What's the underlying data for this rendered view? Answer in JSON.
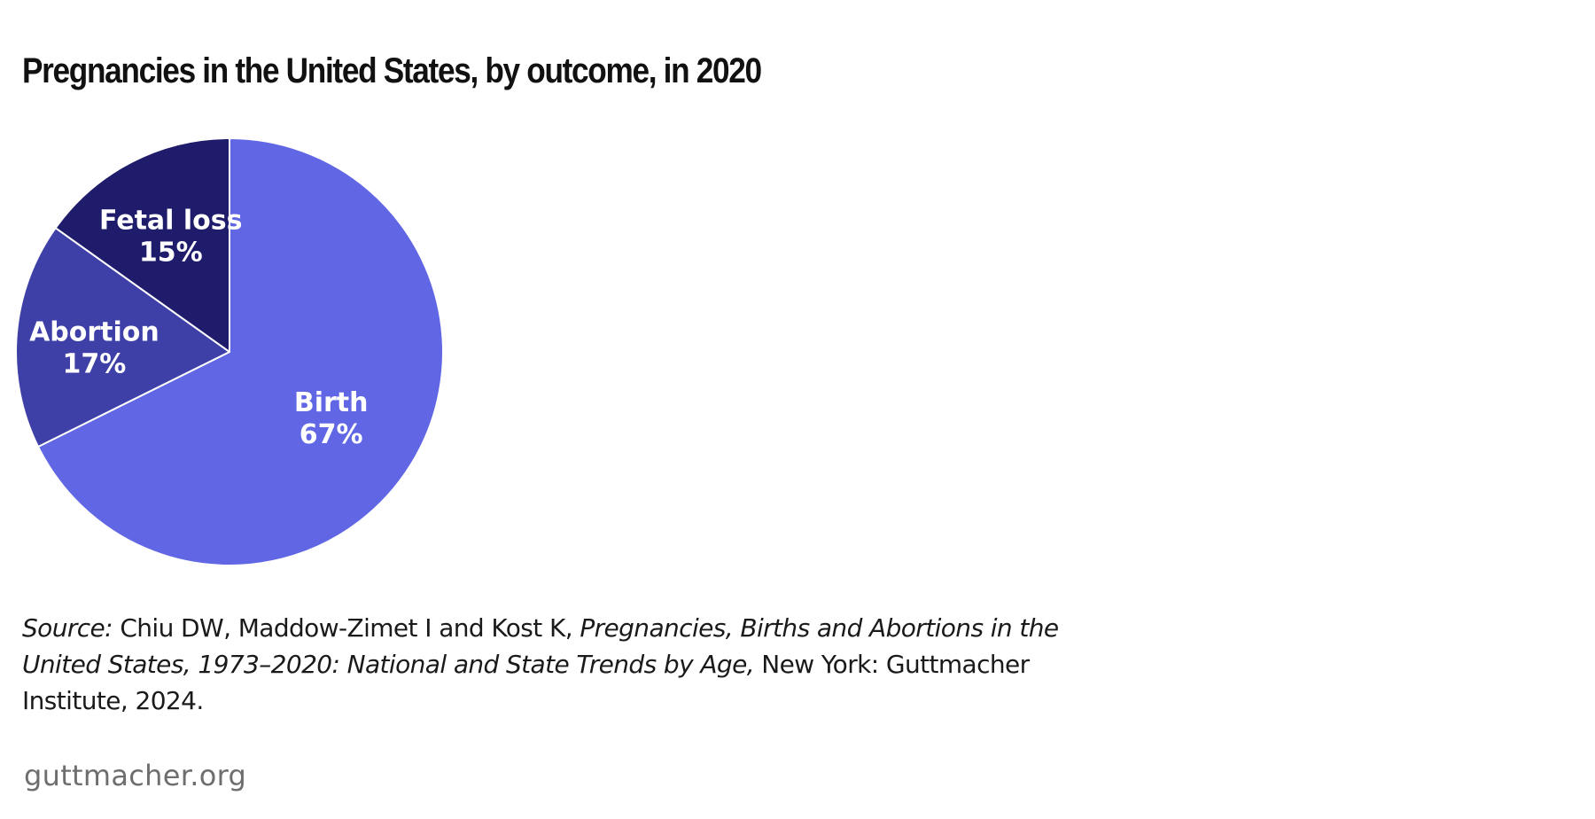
{
  "chart_data": {
    "type": "pie",
    "title": "Pregnancies in the United States, by outcome, in 2020",
    "slices": [
      {
        "label": "Birth",
        "value": 67,
        "value_label": "67%",
        "color": "#6167e4"
      },
      {
        "label": "Abortion",
        "value": 17,
        "value_label": "17%",
        "color": "#3e40a8"
      },
      {
        "label": "Fetal loss",
        "value": 15,
        "value_label": "15%",
        "color": "#1f1c6b"
      }
    ],
    "start_angle": "12 o'clock",
    "direction": "clockwise",
    "slice_border_color": "#ffffff"
  },
  "source": {
    "label": "Source:",
    "authors": " Chiu DW, Maddow-Zimet I and Kost K, ",
    "publication": "Pregnancies, Births and Abortions in the United States, 1973–2020: National and State Trends by Age,",
    "publisher": " New York: Guttmacher Institute, 2024."
  },
  "footer": {
    "site": "guttmacher.org"
  }
}
